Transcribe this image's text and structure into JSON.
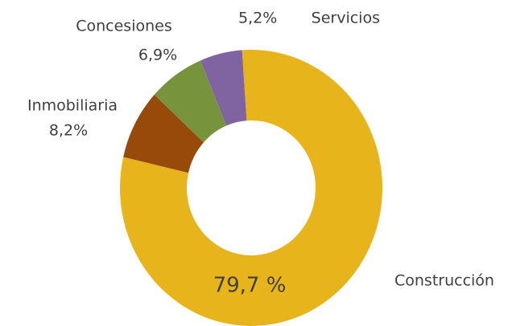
{
  "chart_data": {
    "type": "donut",
    "categories": [
      "Construcción",
      "Inmobiliaria",
      "Concesiones",
      "Servicios"
    ],
    "values": [
      79.7,
      8.2,
      6.9,
      5.2
    ],
    "value_labels": [
      "79,7 %",
      "8,2%",
      "6,9%",
      "5,2%"
    ],
    "colors": [
      "#e8b41c",
      "#974a0a",
      "#77933c",
      "#8064a2"
    ]
  }
}
